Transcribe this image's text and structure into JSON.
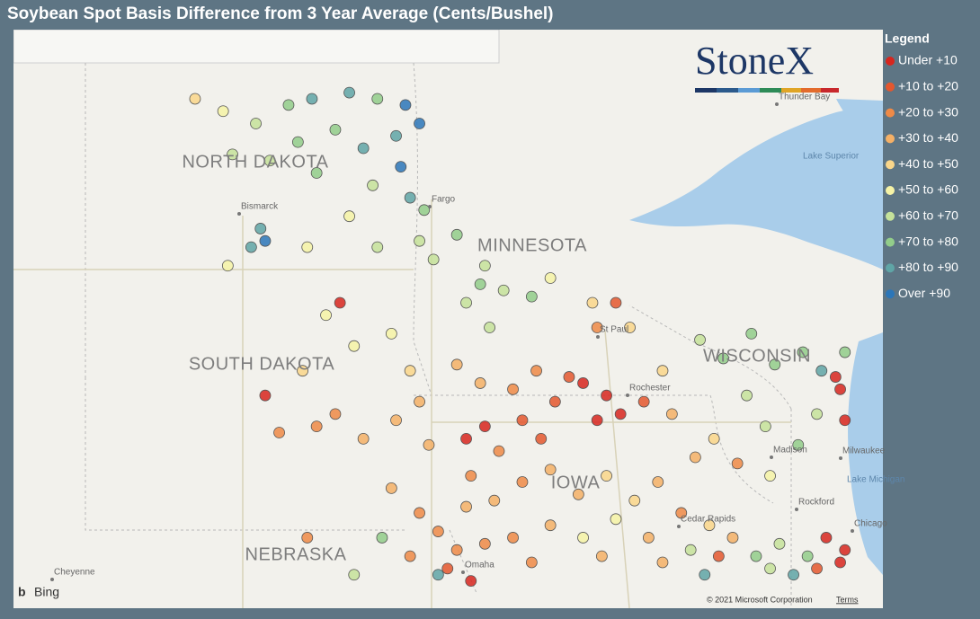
{
  "title": "Soybean Spot Basis Difference from 3 Year Average (Cents/Bushel)",
  "legend": {
    "title": "Legend",
    "bins": [
      10,
      20,
      30,
      40,
      50,
      60,
      70,
      80,
      90
    ],
    "items": [
      {
        "label": "Under +10",
        "color": "#d7261e"
      },
      {
        "label": "+10 to +20",
        "color": "#e4572e"
      },
      {
        "label": "+20 to +30",
        "color": "#ef8a47"
      },
      {
        "label": "+30 to +40",
        "color": "#f5b066"
      },
      {
        "label": "+40 to +50",
        "color": "#fad68a"
      },
      {
        "label": "+50 to +60",
        "color": "#f6f3a6"
      },
      {
        "label": "+60 to +70",
        "color": "#c5e29a"
      },
      {
        "label": "+70 to +80",
        "color": "#92cd8a"
      },
      {
        "label": "+80 to +90",
        "color": "#5fa5a6"
      },
      {
        "label": "Over +90",
        "color": "#2c76b8"
      }
    ]
  },
  "logo": "StoneX",
  "states": [
    "NORTH DAKOTA",
    "MINNESOTA",
    "SOUTH DAKOTA",
    "WISCONSIN",
    "NEBRASKA",
    "IOWA"
  ],
  "places": [
    "Bismarck",
    "Fargo",
    "St Paul",
    "Rochester",
    "Madison",
    "Milwaukee",
    "Cedar Rapids",
    "Rockford",
    "Chicago",
    "Omaha",
    "Cheyenne",
    "Thunder Bay"
  ],
  "water": [
    "Lake Superior",
    "Lake Michigan"
  ],
  "attribution": {
    "provider": "Bing",
    "copyright": "© 2021 Microsoft Corporation",
    "terms": "Terms"
  },
  "points": [
    {
      "lon": -99.8,
      "lat": 48.6,
      "value": 75
    },
    {
      "lon": -99.3,
      "lat": 48.7,
      "value": 80
    },
    {
      "lon": -98.5,
      "lat": 48.8,
      "value": 82
    },
    {
      "lon": -97.9,
      "lat": 48.7,
      "value": 78
    },
    {
      "lon": -97.3,
      "lat": 48.6,
      "value": 92
    },
    {
      "lon": -97.0,
      "lat": 48.3,
      "value": 91
    },
    {
      "lon": -97.5,
      "lat": 48.1,
      "value": 86
    },
    {
      "lon": -98.2,
      "lat": 47.9,
      "value": 88
    },
    {
      "lon": -98.8,
      "lat": 48.2,
      "value": 74
    },
    {
      "lon": -99.6,
      "lat": 48.0,
      "value": 72
    },
    {
      "lon": -100.5,
      "lat": 48.3,
      "value": 68
    },
    {
      "lon": -101.2,
      "lat": 48.5,
      "value": 55
    },
    {
      "lon": -101.8,
      "lat": 48.7,
      "value": 48
    },
    {
      "lon": -101.0,
      "lat": 47.8,
      "value": 62
    },
    {
      "lon": -100.2,
      "lat": 47.7,
      "value": 66
    },
    {
      "lon": -99.2,
      "lat": 47.5,
      "value": 70
    },
    {
      "lon": -98.0,
      "lat": 47.3,
      "value": 64
    },
    {
      "lon": -97.4,
      "lat": 47.6,
      "value": 90
    },
    {
      "lon": -97.2,
      "lat": 47.1,
      "value": 84
    },
    {
      "lon": -96.9,
      "lat": 46.9,
      "value": 70
    },
    {
      "lon": -97.0,
      "lat": 46.4,
      "value": 66
    },
    {
      "lon": -96.7,
      "lat": 46.1,
      "value": 62
    },
    {
      "lon": -97.9,
      "lat": 46.3,
      "value": 65
    },
    {
      "lon": -98.5,
      "lat": 46.8,
      "value": 58
    },
    {
      "lon": -99.4,
      "lat": 46.3,
      "value": 55
    },
    {
      "lon": -100.4,
      "lat": 46.6,
      "value": 85
    },
    {
      "lon": -100.6,
      "lat": 46.3,
      "value": 83
    },
    {
      "lon": -100.3,
      "lat": 46.4,
      "value": 92
    },
    {
      "lon": -101.1,
      "lat": 46.0,
      "value": 50
    },
    {
      "lon": -96.2,
      "lat": 46.5,
      "value": 70
    },
    {
      "lon": -95.6,
      "lat": 46.0,
      "value": 68
    },
    {
      "lon": -95.2,
      "lat": 45.6,
      "value": 66
    },
    {
      "lon": -96.0,
      "lat": 45.4,
      "value": 64
    },
    {
      "lon": -95.5,
      "lat": 45.0,
      "value": 60
    },
    {
      "lon": -94.6,
      "lat": 45.5,
      "value": 72
    },
    {
      "lon": -94.2,
      "lat": 45.8,
      "value": 55
    },
    {
      "lon": -93.3,
      "lat": 45.4,
      "value": 45
    },
    {
      "lon": -92.5,
      "lat": 45.0,
      "value": 40
    },
    {
      "lon": -95.7,
      "lat": 45.7,
      "value": 75
    },
    {
      "lon": -93.2,
      "lat": 45.0,
      "value": 28
    },
    {
      "lon": -98.7,
      "lat": 45.4,
      "value": 8
    },
    {
      "lon": -92.8,
      "lat": 45.4,
      "value": 12
    },
    {
      "lon": -99.0,
      "lat": 45.2,
      "value": 52
    },
    {
      "lon": -99.5,
      "lat": 44.3,
      "value": 48
    },
    {
      "lon": -98.4,
      "lat": 44.7,
      "value": 55
    },
    {
      "lon": -97.6,
      "lat": 44.9,
      "value": 58
    },
    {
      "lon": -97.2,
      "lat": 44.3,
      "value": 42
    },
    {
      "lon": -97.0,
      "lat": 43.8,
      "value": 38
    },
    {
      "lon": -97.5,
      "lat": 43.5,
      "value": 35
    },
    {
      "lon": -98.2,
      "lat": 43.2,
      "value": 30
    },
    {
      "lon": -98.8,
      "lat": 43.6,
      "value": 22
    },
    {
      "lon": -99.2,
      "lat": 43.4,
      "value": 28
    },
    {
      "lon": -100.3,
      "lat": 43.9,
      "value": 8
    },
    {
      "lon": -100.0,
      "lat": 43.3,
      "value": 25
    },
    {
      "lon": -96.8,
      "lat": 43.1,
      "value": 32
    },
    {
      "lon": -96.2,
      "lat": 44.4,
      "value": 35
    },
    {
      "lon": -95.7,
      "lat": 44.1,
      "value": 30
    },
    {
      "lon": -95.0,
      "lat": 44.0,
      "value": 25
    },
    {
      "lon": -94.5,
      "lat": 44.3,
      "value": 28
    },
    {
      "lon": -93.8,
      "lat": 44.2,
      "value": 18
    },
    {
      "lon": -93.5,
      "lat": 44.1,
      "value": 8
    },
    {
      "lon": -93.0,
      "lat": 43.9,
      "value": 6
    },
    {
      "lon": -92.7,
      "lat": 43.6,
      "value": 5
    },
    {
      "lon": -93.2,
      "lat": 43.5,
      "value": 9
    },
    {
      "lon": -94.1,
      "lat": 43.8,
      "value": 15
    },
    {
      "lon": -94.8,
      "lat": 43.5,
      "value": 12
    },
    {
      "lon": -95.6,
      "lat": 43.4,
      "value": 8
    },
    {
      "lon": -96.0,
      "lat": 43.2,
      "value": 5
    },
    {
      "lon": -95.3,
      "lat": 43.0,
      "value": 22
    },
    {
      "lon": -94.4,
      "lat": 43.2,
      "value": 14
    },
    {
      "lon": -92.2,
      "lat": 43.8,
      "value": 18
    },
    {
      "lon": -91.6,
      "lat": 43.6,
      "value": 35
    },
    {
      "lon": -91.8,
      "lat": 44.3,
      "value": 45
    },
    {
      "lon": -95.9,
      "lat": 42.6,
      "value": 28
    },
    {
      "lon": -95.4,
      "lat": 42.2,
      "value": 33
    },
    {
      "lon": -94.8,
      "lat": 42.5,
      "value": 24
    },
    {
      "lon": -94.2,
      "lat": 42.7,
      "value": 30
    },
    {
      "lon": -93.6,
      "lat": 42.3,
      "value": 38
    },
    {
      "lon": -93.0,
      "lat": 42.6,
      "value": 42
    },
    {
      "lon": -92.4,
      "lat": 42.2,
      "value": 45
    },
    {
      "lon": -91.9,
      "lat": 42.5,
      "value": 32
    },
    {
      "lon": -91.4,
      "lat": 42.0,
      "value": 28
    },
    {
      "lon": -92.8,
      "lat": 41.9,
      "value": 55
    },
    {
      "lon": -93.5,
      "lat": 41.6,
      "value": 50
    },
    {
      "lon": -94.2,
      "lat": 41.8,
      "value": 35
    },
    {
      "lon": -95.0,
      "lat": 41.6,
      "value": 26
    },
    {
      "lon": -95.6,
      "lat": 41.5,
      "value": 20
    },
    {
      "lon": -92.1,
      "lat": 41.6,
      "value": 38
    },
    {
      "lon": -91.2,
      "lat": 41.4,
      "value": 62
    },
    {
      "lon": -90.8,
      "lat": 41.8,
      "value": 40
    },
    {
      "lon": -93.1,
      "lat": 41.3,
      "value": 36
    },
    {
      "lon": -94.6,
      "lat": 41.2,
      "value": 28
    },
    {
      "lon": -91.8,
      "lat": 41.2,
      "value": 30
    },
    {
      "lon": -90.6,
      "lat": 41.3,
      "value": 12
    },
    {
      "lon": -97.6,
      "lat": 42.4,
      "value": 35
    },
    {
      "lon": -97.0,
      "lat": 42.0,
      "value": 25
    },
    {
      "lon": -96.6,
      "lat": 41.7,
      "value": 22
    },
    {
      "lon": -96.2,
      "lat": 41.4,
      "value": 24
    },
    {
      "lon": -97.2,
      "lat": 41.3,
      "value": 28
    },
    {
      "lon": -96.0,
      "lat": 42.1,
      "value": 30
    },
    {
      "lon": -96.4,
      "lat": 41.1,
      "value": 18
    },
    {
      "lon": -97.8,
      "lat": 41.6,
      "value": 70
    },
    {
      "lon": -98.4,
      "lat": 41.0,
      "value": 60
    },
    {
      "lon": -99.4,
      "lat": 41.6,
      "value": 25
    },
    {
      "lon": -96.6,
      "lat": 41.0,
      "value": 85
    },
    {
      "lon": -95.9,
      "lat": 40.9,
      "value": 6
    },
    {
      "lon": -91.0,
      "lat": 44.8,
      "value": 65
    },
    {
      "lon": -90.5,
      "lat": 44.5,
      "value": 70
    },
    {
      "lon": -89.9,
      "lat": 44.9,
      "value": 75
    },
    {
      "lon": -89.4,
      "lat": 44.4,
      "value": 72
    },
    {
      "lon": -88.8,
      "lat": 44.6,
      "value": 78
    },
    {
      "lon": -88.4,
      "lat": 44.3,
      "value": 85
    },
    {
      "lon": -90.0,
      "lat": 43.9,
      "value": 60
    },
    {
      "lon": -89.6,
      "lat": 43.4,
      "value": 68
    },
    {
      "lon": -88.9,
      "lat": 43.1,
      "value": 72
    },
    {
      "lon": -88.5,
      "lat": 43.6,
      "value": 65
    },
    {
      "lon": -90.7,
      "lat": 43.2,
      "value": 45
    },
    {
      "lon": -88.0,
      "lat": 44.0,
      "value": 5
    },
    {
      "lon": -87.9,
      "lat": 43.5,
      "value": 8
    },
    {
      "lon": -88.1,
      "lat": 44.2,
      "value": 9
    },
    {
      "lon": -90.2,
      "lat": 42.8,
      "value": 25
    },
    {
      "lon": -89.5,
      "lat": 42.6,
      "value": 55
    },
    {
      "lon": -91.1,
      "lat": 42.9,
      "value": 35
    },
    {
      "lon": -87.9,
      "lat": 44.6,
      "value": 70
    },
    {
      "lon": -90.3,
      "lat": 41.6,
      "value": 30
    },
    {
      "lon": -89.8,
      "lat": 41.3,
      "value": 72
    },
    {
      "lon": -89.3,
      "lat": 41.5,
      "value": 65
    },
    {
      "lon": -88.7,
      "lat": 41.3,
      "value": 75
    },
    {
      "lon": -88.3,
      "lat": 41.6,
      "value": 5
    },
    {
      "lon": -87.9,
      "lat": 41.4,
      "value": 8
    },
    {
      "lon": -88.0,
      "lat": 41.2,
      "value": 3
    },
    {
      "lon": -88.5,
      "lat": 41.1,
      "value": 12
    },
    {
      "lon": -89.0,
      "lat": 41.0,
      "value": 88
    },
    {
      "lon": -90.9,
      "lat": 41.0,
      "value": 85
    },
    {
      "lon": -89.5,
      "lat": 41.1,
      "value": 60
    }
  ]
}
